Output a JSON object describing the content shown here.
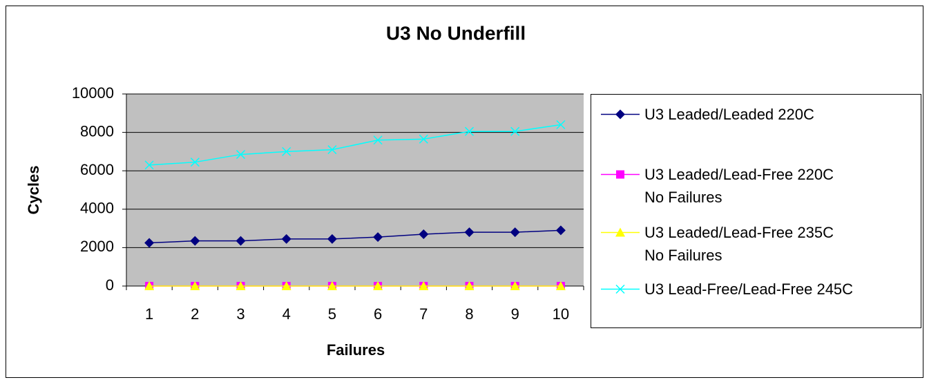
{
  "chart_data": {
    "type": "line",
    "title": "U3 No Underfill",
    "x_label": "Failures",
    "y_label": "Cycles",
    "categories": [
      "1",
      "2",
      "3",
      "4",
      "5",
      "6",
      "7",
      "8",
      "9",
      "10"
    ],
    "series": [
      {
        "name": "U3 Leaded/Leaded 220C",
        "color": "#000080",
        "marker": "diamond",
        "values": [
          2250,
          2350,
          2350,
          2450,
          2450,
          2550,
          2700,
          2800,
          2800,
          2900
        ]
      },
      {
        "name": "U3 Leaded/Lead-Free 220C\nNo Failures",
        "color": "#ff00ff",
        "marker": "square",
        "values": [
          0,
          0,
          0,
          0,
          0,
          0,
          0,
          0,
          0,
          0
        ]
      },
      {
        "name": "U3 Leaded/Lead-Free 235C\nNo Failures",
        "color": "#ffff00",
        "marker": "triangle",
        "values": [
          0,
          0,
          0,
          0,
          0,
          0,
          0,
          0,
          0,
          0
        ]
      },
      {
        "name": "U3 Lead-Free/Lead-Free 245C",
        "color": "#00ffff",
        "marker": "x",
        "values": [
          6300,
          6450,
          6850,
          7000,
          7100,
          7600,
          7650,
          8050,
          8050,
          8400
        ]
      }
    ],
    "ylim": [
      0,
      10000
    ],
    "yticks": [
      0,
      2000,
      4000,
      6000,
      8000,
      10000
    ],
    "grid": true,
    "plot_background": "#c0c0c0",
    "legend": "right"
  }
}
